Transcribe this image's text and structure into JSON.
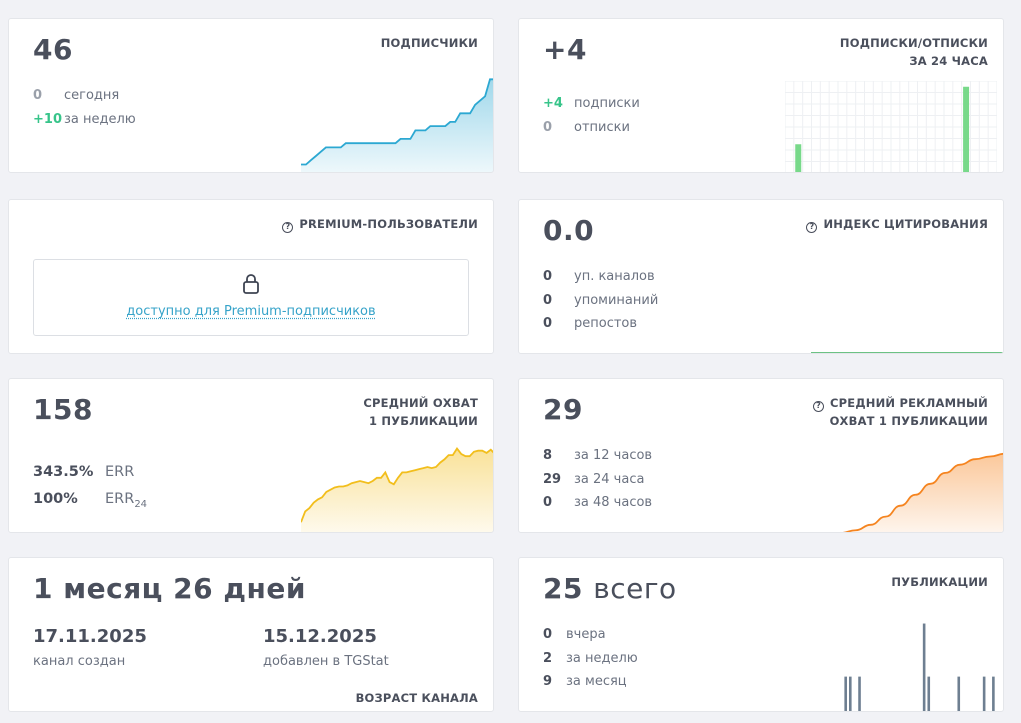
{
  "subscribers": {
    "value": "46",
    "label": "ПОДПИСЧИКИ",
    "rows": [
      {
        "num": "0",
        "text": "сегодня"
      },
      {
        "num": "+10",
        "text": "за неделю"
      }
    ],
    "color": "#2ca8d2"
  },
  "subs_unsubs": {
    "value": "+4",
    "label_line1": "ПОДПИСКИ/ОТПИСКИ",
    "label_line2": "ЗА 24 ЧАСА",
    "rows": [
      {
        "num": "+4",
        "text": "подписки"
      },
      {
        "num": "0",
        "text": "отписки"
      }
    ],
    "color": "#78d98a"
  },
  "premium": {
    "label": "PREMIUM-ПОЛЬЗОВАТЕЛИ",
    "link_text": "доступно для Premium-подписчиков",
    "icon": "lock-icon",
    "info_icon": "question-circle-icon"
  },
  "citation": {
    "value": "0.0",
    "label": "ИНДЕКС ЦИТИРОВАНИЯ",
    "rows": [
      {
        "num": "0",
        "text": "уп. каналов"
      },
      {
        "num": "0",
        "text": "упоминаний"
      },
      {
        "num": "0",
        "text": "репостов"
      }
    ],
    "color": "#3cae5c"
  },
  "avg_reach": {
    "value": "158",
    "label_line1": "СРЕДНИЙ ОХВАТ",
    "label_line2": "1 ПУБЛИКАЦИИ",
    "err_rows": [
      {
        "num": "343.5%",
        "text": "ERR",
        "sub": ""
      },
      {
        "num": "100%",
        "text": "ERR",
        "sub": "24"
      }
    ],
    "color": "#f2be1c"
  },
  "ad_reach": {
    "value": "29",
    "label_line1": "СРЕДНИЙ РЕКЛАМНЫЙ",
    "label_line2": "ОХВАТ 1 ПУБЛИКАЦИИ",
    "rows": [
      {
        "num": "8",
        "text": "за 12 часов"
      },
      {
        "num": "29",
        "text": "за 24 часа"
      },
      {
        "num": "0",
        "text": "за 48 часов"
      }
    ],
    "color": "#f5841f"
  },
  "age": {
    "value": "1 месяц 26 дней",
    "created_date": "17.11.2025",
    "created_label": "канал создан",
    "added_date": "15.12.2025",
    "added_label": "добавлен в TGStat",
    "label": "ВОЗРАСТ КАНАЛА"
  },
  "publications": {
    "value": "25",
    "value_suffix": "всего",
    "label": "ПУБЛИКАЦИИ",
    "rows": [
      {
        "num": "0",
        "text": "вчера"
      },
      {
        "num": "2",
        "text": "за неделю"
      },
      {
        "num": "9",
        "text": "за месяц"
      }
    ],
    "color": "#6e7f91"
  },
  "chart_data": [
    {
      "type": "area",
      "title": "ПОДПИСЧИКИ",
      "x": [
        0,
        1,
        2,
        3,
        4,
        5,
        6,
        7,
        8,
        9,
        10,
        11,
        12,
        13,
        14,
        15,
        16,
        17,
        18,
        19,
        20,
        21,
        22,
        23,
        24,
        25,
        26,
        27,
        28,
        29,
        30,
        31,
        32,
        33,
        34,
        35,
        36,
        37,
        38,
        39
      ],
      "values": [
        36,
        36,
        36.5,
        37,
        37.5,
        38,
        38,
        38,
        38,
        38.5,
        38.5,
        38.5,
        38.5,
        38.5,
        38.5,
        38.5,
        38.5,
        38.5,
        38.5,
        38.5,
        39,
        39,
        39,
        40,
        40,
        40,
        40.5,
        40.5,
        40.5,
        40.5,
        41,
        41,
        42,
        42,
        42,
        43,
        43.5,
        44,
        46,
        46
      ],
      "ylim": [
        35,
        46.5
      ]
    },
    {
      "type": "bar",
      "title": "ПОДПИСКИ/ОТПИСКИ ЗА 24 ЧАСА",
      "categories": [
        0,
        1,
        2,
        3,
        4,
        5,
        6,
        7,
        8,
        9,
        10,
        11,
        12,
        13,
        14,
        15,
        16,
        17,
        18,
        19,
        20,
        21,
        22,
        23
      ],
      "values": [
        0,
        1,
        0,
        0,
        0,
        0,
        0,
        0,
        0,
        0,
        0,
        0,
        0,
        0,
        0,
        0,
        0,
        0,
        0,
        0,
        3,
        0,
        0,
        0
      ],
      "ylim": [
        0,
        3.2
      ]
    },
    {
      "type": "line",
      "title": "ИНДЕКС ЦИТИРОВАНИЯ",
      "values": [
        0,
        0,
        0,
        0,
        0,
        0,
        0,
        0,
        0,
        0
      ],
      "ylim": [
        0,
        1
      ]
    },
    {
      "type": "area",
      "title": "СРЕДНИЙ ОХВАТ 1 ПУБЛИКАЦИИ",
      "values": [
        90,
        100,
        103,
        108,
        111,
        113,
        118,
        120,
        122,
        123,
        123,
        124,
        126,
        127,
        128,
        127,
        126,
        128,
        131,
        131,
        136,
        127,
        125,
        131,
        136,
        136,
        137,
        138,
        139,
        140,
        141,
        140,
        141,
        145,
        148,
        152,
        152,
        158,
        153,
        151,
        151,
        155,
        156,
        156,
        154,
        157,
        153
      ],
      "ylim": [
        80,
        165
      ]
    },
    {
      "type": "area",
      "title": "СРЕДНИЙ РЕКЛАМНЫЙ ОХВАТ 1 ПУБЛИКАЦИИ",
      "values": [
        0,
        0,
        0,
        1,
        3,
        6,
        10,
        14,
        18,
        22,
        25,
        27,
        28,
        29
      ],
      "ylim": [
        0,
        30
      ]
    },
    {
      "type": "bar",
      "title": "ПУБЛИКАЦИИ",
      "values": [
        0,
        0,
        0,
        0,
        0,
        0,
        0,
        0,
        0,
        0,
        0,
        2,
        0,
        2,
        0,
        0,
        0,
        2,
        0,
        0,
        0,
        0,
        0,
        0,
        0,
        0,
        0,
        0,
        0,
        0,
        0,
        0,
        0,
        0,
        0,
        0,
        0,
        0,
        0,
        0,
        0,
        0,
        0,
        0,
        0,
        5,
        0,
        2,
        0,
        0,
        0,
        0,
        0,
        0,
        0,
        0,
        0,
        0,
        0,
        0,
        2,
        0,
        0,
        0,
        0,
        0,
        0,
        0,
        0,
        0,
        0,
        2,
        0,
        0,
        0,
        2,
        0,
        0
      ],
      "ylim": [
        0,
        5.2
      ]
    }
  ]
}
